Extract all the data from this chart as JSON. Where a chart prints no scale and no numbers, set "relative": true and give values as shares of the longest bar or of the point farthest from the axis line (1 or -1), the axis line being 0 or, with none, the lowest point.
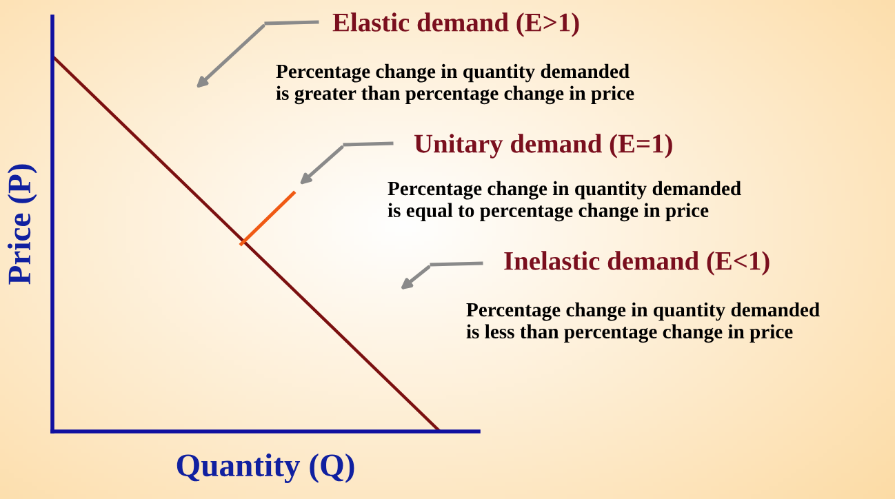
{
  "chart_data": {
    "type": "line",
    "relative": true,
    "categories": [
      null,
      null
    ],
    "series": [
      {
        "color": "#7b1010",
        "values": [
          1,
          0
        ]
      }
    ],
    "xlabel": "Quantity (Q)",
    "ylabel": "Price (P)",
    "annotations": [
      "Elastic demand (E>1)",
      "Percentage change in quantity demanded\nis greater than percentage change in price",
      "Unitary demand (E=1)",
      "Percentage change in quantity demanded\nis equal to percentage change in price",
      "Inelastic demand (E<1)",
      "Percentage change in quantity demanded\nis less than percentage change in price"
    ]
  }
}
